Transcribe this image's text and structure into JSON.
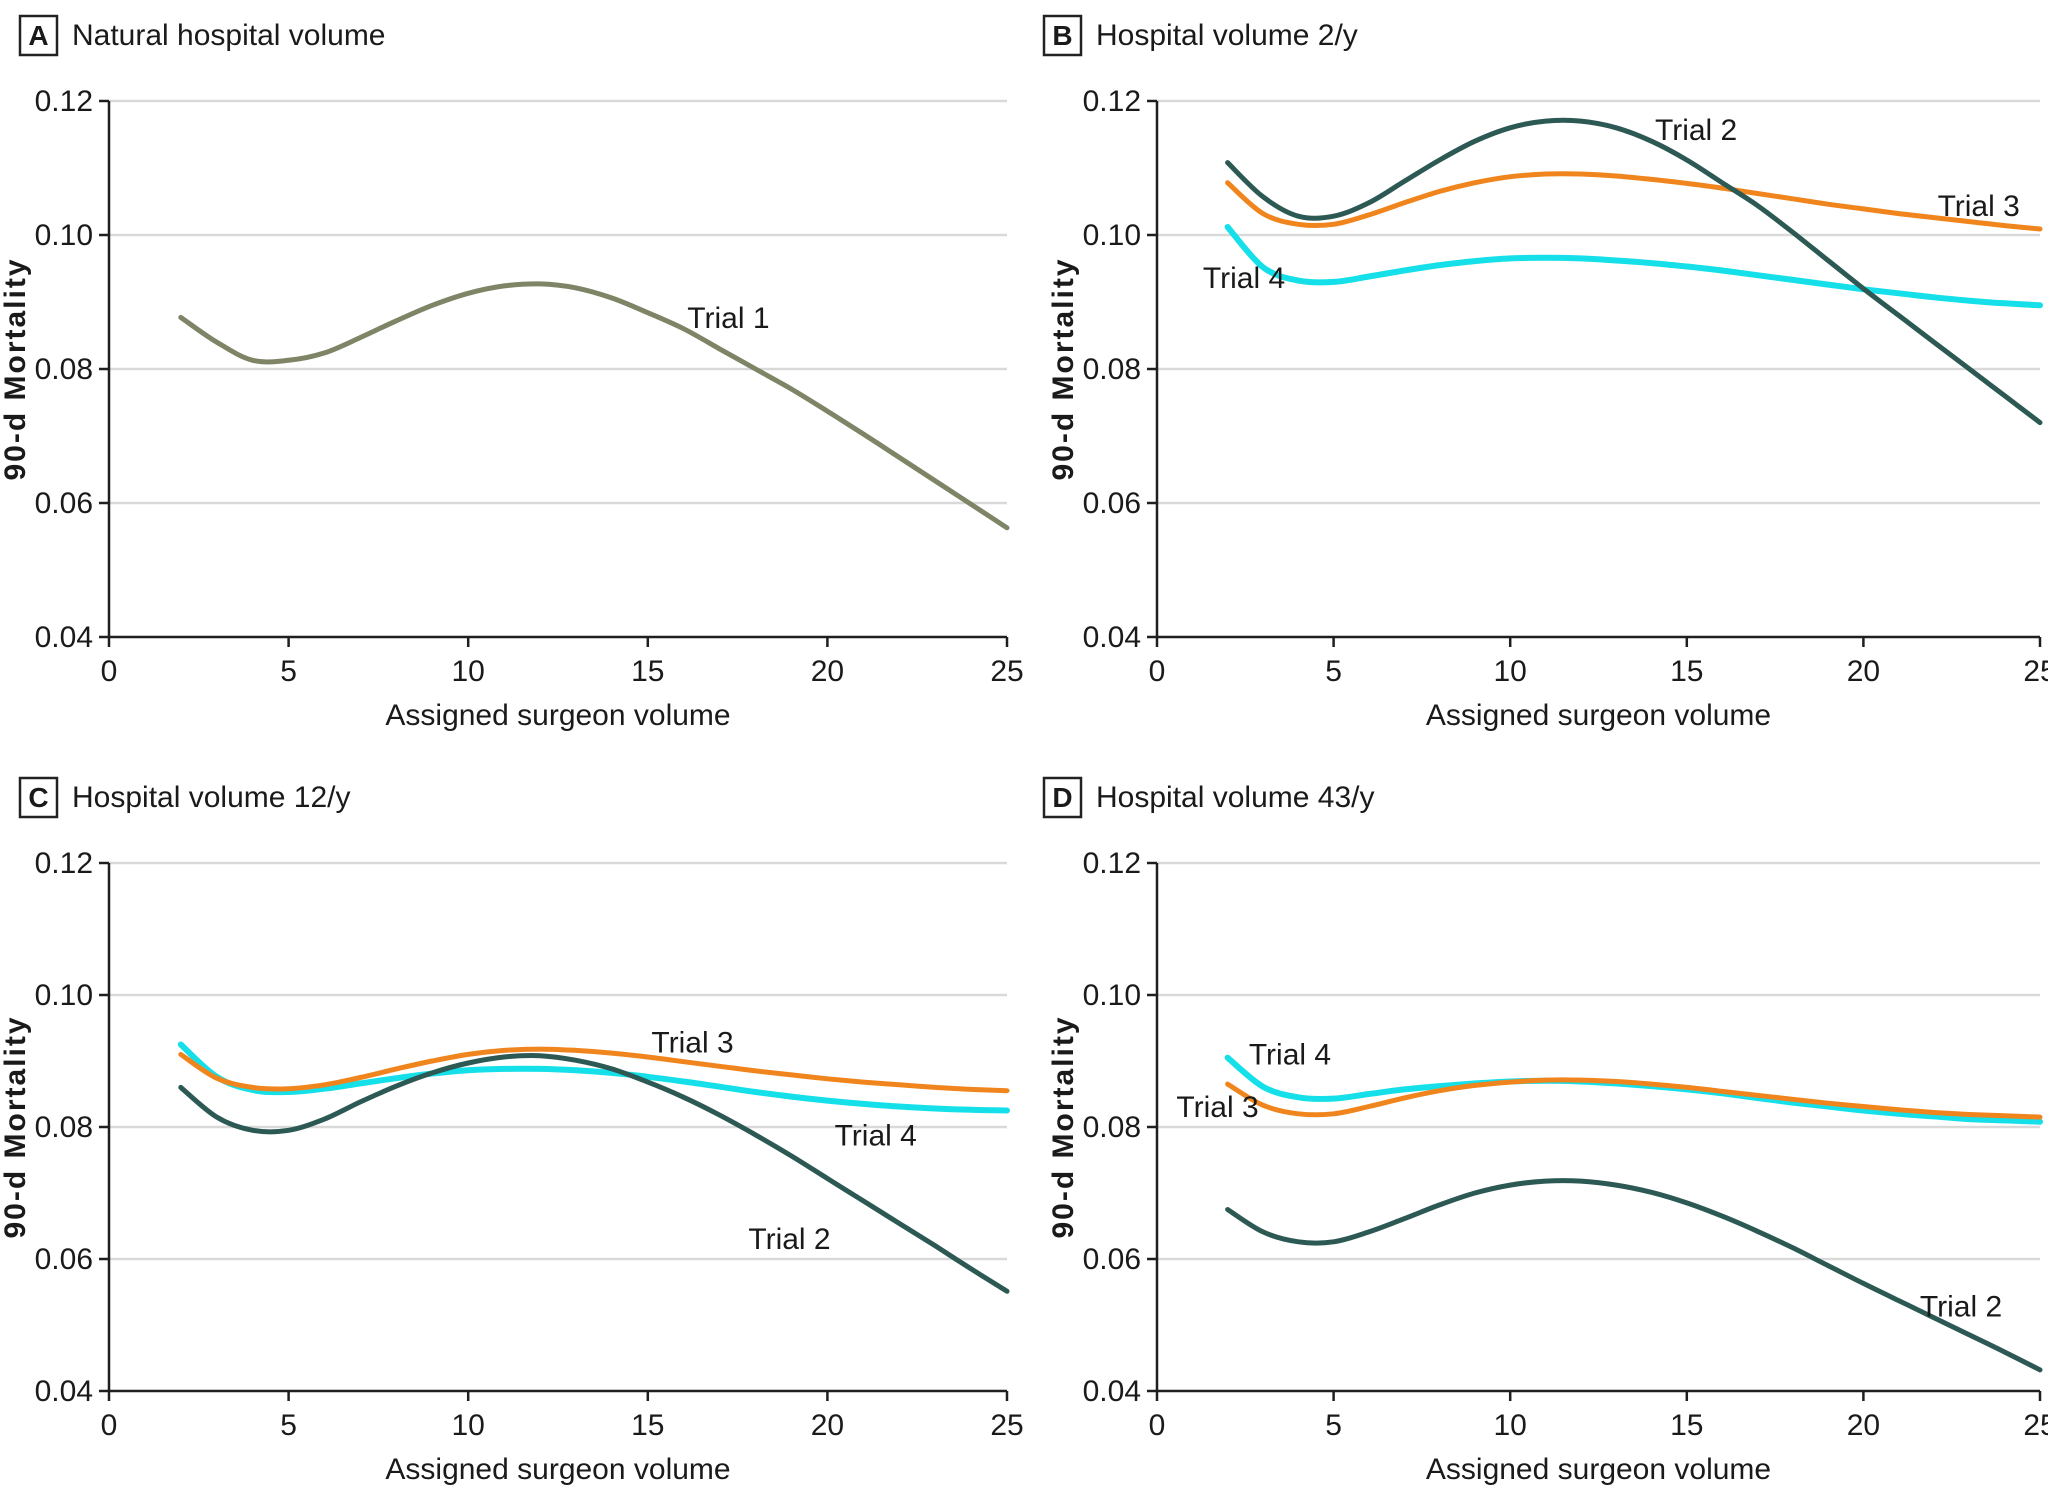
{
  "figure": {
    "background": "#ffffff"
  },
  "colors": {
    "trial1": "#7e8567",
    "trial2": "#2d5954",
    "trial3": "#f0851d",
    "trial4": "#15dfe9",
    "grid": "#d9d9d9",
    "axis": "#1f1f1f",
    "text": "#1a1a1a"
  },
  "axes": {
    "x_label": "Assigned surgeon volume",
    "y_label": "90-d Mortality",
    "x_ticks": [
      0,
      5,
      10,
      15,
      20,
      25
    ],
    "y_tick_labels": [
      "0.04",
      "0.06",
      "0.08",
      "0.10",
      "0.12"
    ],
    "x_range": [
      0,
      25
    ],
    "y_range": [
      0.04,
      0.12
    ],
    "grid": "horizontal-only"
  },
  "chart_data": [
    {
      "type": "line",
      "panel_letter": "A",
      "title": "Natural hospital volume",
      "x": [
        2,
        3,
        4,
        5,
        6,
        7,
        8,
        9,
        10,
        11,
        12,
        13,
        14,
        15,
        16,
        17,
        18,
        19,
        20,
        21,
        22,
        23,
        24,
        25
      ],
      "series": [
        {
          "name": "Trial 1",
          "color_key": "trial1",
          "stroke_width": 5,
          "values": [
            0.0877,
            0.084,
            0.0813,
            0.0813,
            0.0824,
            0.0847,
            0.0872,
            0.0895,
            0.0913,
            0.0924,
            0.0927,
            0.0921,
            0.0906,
            0.0884,
            0.086,
            0.083,
            0.08,
            0.077,
            0.0737,
            0.0703,
            0.0668,
            0.0633,
            0.0598,
            0.0563
          ],
          "label": {
            "text": "Trial 1",
            "x": 16.1,
            "y": 0.0876
          }
        }
      ]
    },
    {
      "type": "line",
      "panel_letter": "B",
      "title": "Hospital volume 2/y",
      "x": [
        2,
        3,
        4,
        5,
        6,
        7,
        8,
        9,
        10,
        11,
        12,
        13,
        14,
        15,
        16,
        17,
        18,
        19,
        20,
        21,
        22,
        23,
        24,
        25
      ],
      "series": [
        {
          "name": "Trial 4",
          "color_key": "trial4",
          "stroke_width": 6,
          "values": [
            0.1012,
            0.0952,
            0.0932,
            0.093,
            0.0938,
            0.0947,
            0.0955,
            0.0961,
            0.0965,
            0.0966,
            0.0965,
            0.0962,
            0.0958,
            0.0953,
            0.0947,
            0.094,
            0.0933,
            0.0926,
            0.0919,
            0.0913,
            0.0907,
            0.0902,
            0.0898,
            0.0895
          ],
          "label": {
            "text": "Trial 4",
            "x": 1.3,
            "y": 0.0936
          }
        },
        {
          "name": "Trial 3",
          "color_key": "trial3",
          "stroke_width": 5,
          "values": [
            0.1078,
            0.1032,
            0.1016,
            0.1016,
            0.103,
            0.1048,
            0.1065,
            0.1078,
            0.1087,
            0.1091,
            0.1091,
            0.1088,
            0.1083,
            0.1077,
            0.107,
            0.1062,
            0.1054,
            0.1046,
            0.1039,
            0.1032,
            0.1026,
            0.102,
            0.1014,
            0.1009
          ],
          "label": {
            "text": "Trial 3",
            "x": 22.1,
            "y": 0.1043
          }
        },
        {
          "name": "Trial 2",
          "color_key": "trial2",
          "stroke_width": 5,
          "values": [
            0.1108,
            0.1057,
            0.1028,
            0.1028,
            0.1048,
            0.108,
            0.1112,
            0.114,
            0.116,
            0.117,
            0.117,
            0.116,
            0.114,
            0.1112,
            0.1078,
            0.1044,
            0.1004,
            0.0962,
            0.092,
            0.088,
            0.084,
            0.08,
            0.076,
            0.072
          ],
          "label": {
            "text": "Trial 2",
            "x": 14.1,
            "y": 0.1157
          }
        }
      ]
    },
    {
      "type": "line",
      "panel_letter": "C",
      "title": "Hospital volume 12/y",
      "x": [
        2,
        3,
        4,
        5,
        6,
        7,
        8,
        9,
        10,
        11,
        12,
        13,
        14,
        15,
        16,
        17,
        18,
        19,
        20,
        21,
        22,
        23,
        24,
        25
      ],
      "series": [
        {
          "name": "Trial 4",
          "color_key": "trial4",
          "stroke_width": 6,
          "values": [
            0.0925,
            0.0876,
            0.0856,
            0.0853,
            0.0858,
            0.0866,
            0.0874,
            0.0881,
            0.0886,
            0.0888,
            0.0888,
            0.0886,
            0.0882,
            0.0876,
            0.0869,
            0.0861,
            0.0853,
            0.0846,
            0.084,
            0.0835,
            0.0831,
            0.0828,
            0.0826,
            0.0825
          ],
          "label": {
            "text": "Trial 4",
            "x": 20.2,
            "y": 0.0787
          }
        },
        {
          "name": "Trial 3",
          "color_key": "trial3",
          "stroke_width": 5,
          "values": [
            0.091,
            0.0874,
            0.086,
            0.0858,
            0.0864,
            0.0875,
            0.0888,
            0.09,
            0.091,
            0.0916,
            0.0918,
            0.0916,
            0.0912,
            0.0906,
            0.0899,
            0.0892,
            0.0885,
            0.0879,
            0.0873,
            0.0868,
            0.0864,
            0.086,
            0.0857,
            0.0855
          ],
          "label": {
            "text": "Trial 3",
            "x": 15.1,
            "y": 0.0928
          }
        },
        {
          "name": "Trial 2",
          "color_key": "trial2",
          "stroke_width": 5,
          "values": [
            0.086,
            0.0815,
            0.0795,
            0.0795,
            0.0812,
            0.0838,
            0.0862,
            0.0882,
            0.0897,
            0.0906,
            0.0908,
            0.0901,
            0.0888,
            0.0868,
            0.0845,
            0.0818,
            0.0788,
            0.0756,
            0.0722,
            0.0688,
            0.0654,
            0.062,
            0.0585,
            0.0551
          ],
          "label": {
            "text": "Trial 2",
            "x": 17.8,
            "y": 0.063
          }
        }
      ]
    },
    {
      "type": "line",
      "panel_letter": "D",
      "title": "Hospital volume 43/y",
      "x": [
        2,
        3,
        4,
        5,
        6,
        7,
        8,
        9,
        10,
        11,
        12,
        13,
        14,
        15,
        16,
        17,
        18,
        19,
        20,
        21,
        22,
        23,
        24,
        25
      ],
      "series": [
        {
          "name": "Trial 4",
          "color_key": "trial4",
          "stroke_width": 6,
          "values": [
            0.0905,
            0.0861,
            0.0845,
            0.0843,
            0.085,
            0.0857,
            0.0862,
            0.0866,
            0.0869,
            0.087,
            0.0869,
            0.0866,
            0.0862,
            0.0857,
            0.0851,
            0.0844,
            0.0837,
            0.0831,
            0.0825,
            0.082,
            0.0816,
            0.0812,
            0.081,
            0.0808
          ],
          "label": {
            "text": "Trial 4",
            "x": 2.6,
            "y": 0.091
          }
        },
        {
          "name": "Trial 3",
          "color_key": "trial3",
          "stroke_width": 5,
          "values": [
            0.0865,
            0.0833,
            0.082,
            0.082,
            0.0831,
            0.0844,
            0.0855,
            0.0863,
            0.0868,
            0.0871,
            0.0871,
            0.0869,
            0.0865,
            0.086,
            0.0854,
            0.0848,
            0.0842,
            0.0836,
            0.0831,
            0.0826,
            0.0822,
            0.0819,
            0.0817,
            0.0815
          ],
          "label": {
            "text": "Trial 3",
            "x": 0.55,
            "y": 0.083
          }
        },
        {
          "name": "Trial 2",
          "color_key": "trial2",
          "stroke_width": 5,
          "values": [
            0.0675,
            0.0641,
            0.0626,
            0.0626,
            0.0641,
            0.0661,
            0.0682,
            0.07,
            0.0712,
            0.0718,
            0.0718,
            0.0712,
            0.0701,
            0.0685,
            0.0665,
            0.0642,
            0.0617,
            0.059,
            0.0563,
            0.0537,
            0.0511,
            0.0485,
            0.0459,
            0.0432
          ],
          "label": {
            "text": "Trial 2",
            "x": 21.6,
            "y": 0.0528
          }
        }
      ]
    }
  ]
}
